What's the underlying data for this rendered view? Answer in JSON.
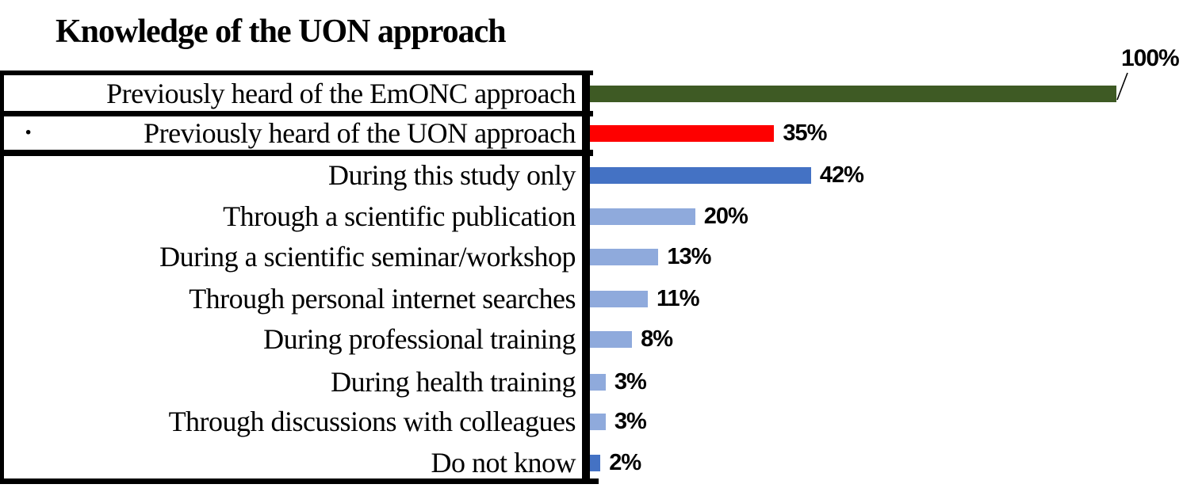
{
  "title": "Knowledge of the UON approach",
  "bullet": "·",
  "callout_label": "100%",
  "colors": {
    "dark_green": "#3E5A24",
    "red": "#FE0000",
    "dark_blue": "#4472C4",
    "light_blue": "#8FAADC",
    "border": "#000000",
    "background": "#FFFFFF",
    "text": "#000000"
  },
  "chart_data": {
    "type": "bar",
    "orientation": "horizontal",
    "title": "Knowledge of the UON approach",
    "xlabel": "",
    "ylabel": "",
    "xlim": [
      0,
      100
    ],
    "unit": "%",
    "grid": false,
    "legend": "none",
    "categories": [
      "Previously heard of the EmONC approach",
      "Previously heard of the UON approach",
      "During this study only",
      "Through a scientific publication",
      "During a scientific seminar/workshop",
      "Through personal internet searches",
      "During professional training",
      "During health training",
      "Through discussions with colleagues",
      "Do not know"
    ],
    "values": [
      100,
      35,
      42,
      20,
      13,
      11,
      8,
      3,
      3,
      2
    ],
    "value_labels": [
      "100%",
      "35%",
      "42%",
      "20%",
      "13%",
      "11%",
      "8%",
      "3%",
      "3%",
      "2%"
    ],
    "bar_colors": [
      "#3E5A24",
      "#FE0000",
      "#4472C4",
      "#8FAADC",
      "#8FAADC",
      "#8FAADC",
      "#8FAADC",
      "#8FAADC",
      "#8FAADC",
      "#4472C4"
    ],
    "annotations": [
      {
        "text": "100%",
        "target_series_index": 0,
        "style": "callout-with-leader-line",
        "position": "top-right"
      }
    ]
  }
}
